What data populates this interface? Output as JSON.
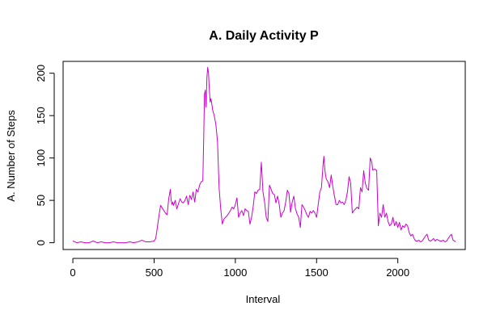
{
  "chart_data": {
    "type": "line",
    "title": "A. Daily Activity P",
    "xlabel": "Interval",
    "ylabel": "A. Number of Steps",
    "xlim": [
      -60,
      2415
    ],
    "ylim": [
      -8,
      214
    ],
    "x_ticks": [
      0,
      500,
      1000,
      1500,
      2000
    ],
    "x_tick_labels": [
      "0",
      "500",
      "1000",
      "1500",
      "2000"
    ],
    "y_ticks": [
      0,
      50,
      100,
      150,
      200
    ],
    "y_tick_labels": [
      "0",
      "50",
      "100",
      "150",
      "200"
    ],
    "grid": false,
    "legend": "none",
    "series": [
      {
        "color": "#cc00cc",
        "x": [
          0,
          25,
          50,
          75,
          100,
          125,
          150,
          175,
          200,
          225,
          250,
          275,
          300,
          325,
          350,
          375,
          400,
          425,
          450,
          475,
          500,
          510,
          520,
          530,
          540,
          550,
          560,
          570,
          580,
          590,
          600,
          605,
          610,
          615,
          620,
          630,
          640,
          650,
          660,
          670,
          680,
          690,
          700,
          710,
          720,
          730,
          740,
          750,
          760,
          770,
          780,
          790,
          800,
          805,
          810,
          815,
          820,
          825,
          830,
          835,
          840,
          845,
          850,
          855,
          860,
          870,
          880,
          890,
          900,
          910,
          920,
          930,
          940,
          950,
          960,
          970,
          980,
          990,
          1000,
          1010,
          1020,
          1030,
          1040,
          1050,
          1060,
          1070,
          1080,
          1090,
          1100,
          1110,
          1120,
          1130,
          1140,
          1150,
          1160,
          1170,
          1180,
          1190,
          1200,
          1210,
          1220,
          1230,
          1240,
          1250,
          1260,
          1270,
          1280,
          1290,
          1300,
          1310,
          1320,
          1330,
          1340,
          1350,
          1360,
          1370,
          1380,
          1390,
          1400,
          1410,
          1420,
          1430,
          1440,
          1450,
          1460,
          1470,
          1480,
          1490,
          1500,
          1510,
          1520,
          1530,
          1540,
          1545,
          1550,
          1555,
          1560,
          1570,
          1580,
          1590,
          1600,
          1610,
          1620,
          1630,
          1640,
          1650,
          1660,
          1670,
          1680,
          1690,
          1700,
          1710,
          1720,
          1730,
          1740,
          1750,
          1760,
          1770,
          1780,
          1790,
          1800,
          1810,
          1820,
          1830,
          1840,
          1845,
          1850,
          1860,
          1870,
          1880,
          1890,
          1900,
          1910,
          1920,
          1930,
          1940,
          1950,
          1960,
          1970,
          1980,
          1990,
          2000,
          2010,
          2020,
          2030,
          2040,
          2050,
          2060,
          2070,
          2080,
          2090,
          2100,
          2110,
          2120,
          2130,
          2140,
          2150,
          2160,
          2170,
          2180,
          2190,
          2200,
          2210,
          2220,
          2230,
          2240,
          2250,
          2260,
          2270,
          2280,
          2290,
          2300,
          2310,
          2320,
          2330,
          2340,
          2350,
          2355
        ],
        "y": [
          2,
          0,
          1,
          0,
          0,
          2,
          0,
          1,
          0,
          0,
          1,
          0,
          0,
          0,
          1,
          0,
          1,
          3,
          1,
          1,
          2,
          5,
          18,
          32,
          44,
          41,
          38,
          35,
          33,
          52,
          63,
          50,
          45,
          48,
          44,
          50,
          40,
          46,
          52,
          48,
          47,
          50,
          55,
          45,
          56,
          51,
          60,
          48,
          63,
          60,
          68,
          72,
          73,
          120,
          175,
          180,
          160,
          195,
          207,
          200,
          180,
          166,
          170,
          164,
          157,
          150,
          140,
          120,
          65,
          40,
          22,
          28,
          30,
          32,
          35,
          38,
          42,
          40,
          45,
          53,
          30,
          35,
          38,
          32,
          40,
          38,
          37,
          22,
          30,
          43,
          60,
          58,
          62,
          63,
          95,
          60,
          48,
          30,
          25,
          68,
          63,
          58,
          57,
          47,
          55,
          45,
          30,
          35,
          38,
          48,
          62,
          58,
          36,
          48,
          55,
          40,
          34,
          30,
          18,
          45,
          42,
          38,
          33,
          30,
          37,
          35,
          38,
          35,
          30,
          45,
          60,
          65,
          92,
          102,
          88,
          80,
          75,
          72,
          65,
          80,
          66,
          55,
          45,
          45,
          50,
          47,
          48,
          45,
          50,
          60,
          78,
          70,
          35,
          38,
          40,
          42,
          40,
          65,
          60,
          85,
          70,
          64,
          62,
          100,
          95,
          86,
          86,
          87,
          85,
          20,
          35,
          30,
          45,
          30,
          35,
          25,
          20,
          22,
          30,
          20,
          25,
          18,
          24,
          15,
          20,
          18,
          22,
          20,
          12,
          8,
          10,
          5,
          2,
          2,
          3,
          1,
          2,
          5,
          8,
          10,
          3,
          2,
          3,
          5,
          2,
          4,
          3,
          2,
          2,
          3,
          1,
          2,
          5,
          8,
          10,
          3,
          2,
          1
        ]
      }
    ]
  }
}
